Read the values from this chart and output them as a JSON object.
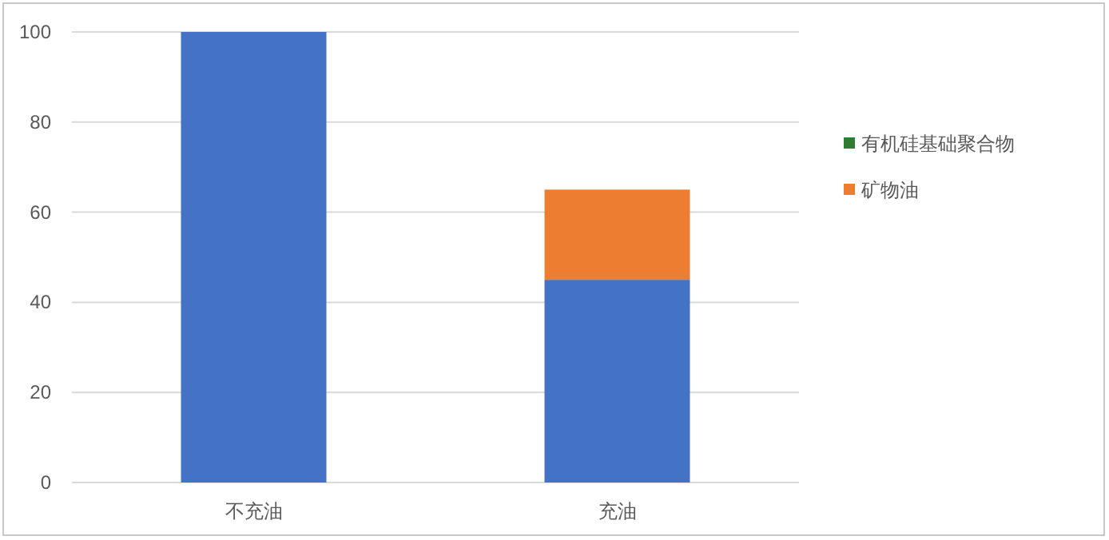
{
  "chart_data": {
    "type": "bar",
    "stacked": true,
    "categories": [
      "不充油",
      "充油"
    ],
    "series": [
      {
        "color": "#4472c4",
        "values": [
          100,
          45
        ]
      },
      {
        "name": "有机硅基础聚合物",
        "color": "#2e7d32",
        "values": [
          0,
          0
        ]
      },
      {
        "name": "矿物油",
        "color": "#ed7d31",
        "values": [
          0,
          20
        ]
      }
    ],
    "ylim": [
      0,
      100
    ],
    "yticks": [
      0,
      20,
      40,
      60,
      80,
      100
    ],
    "grid": "y",
    "legend": "right"
  }
}
